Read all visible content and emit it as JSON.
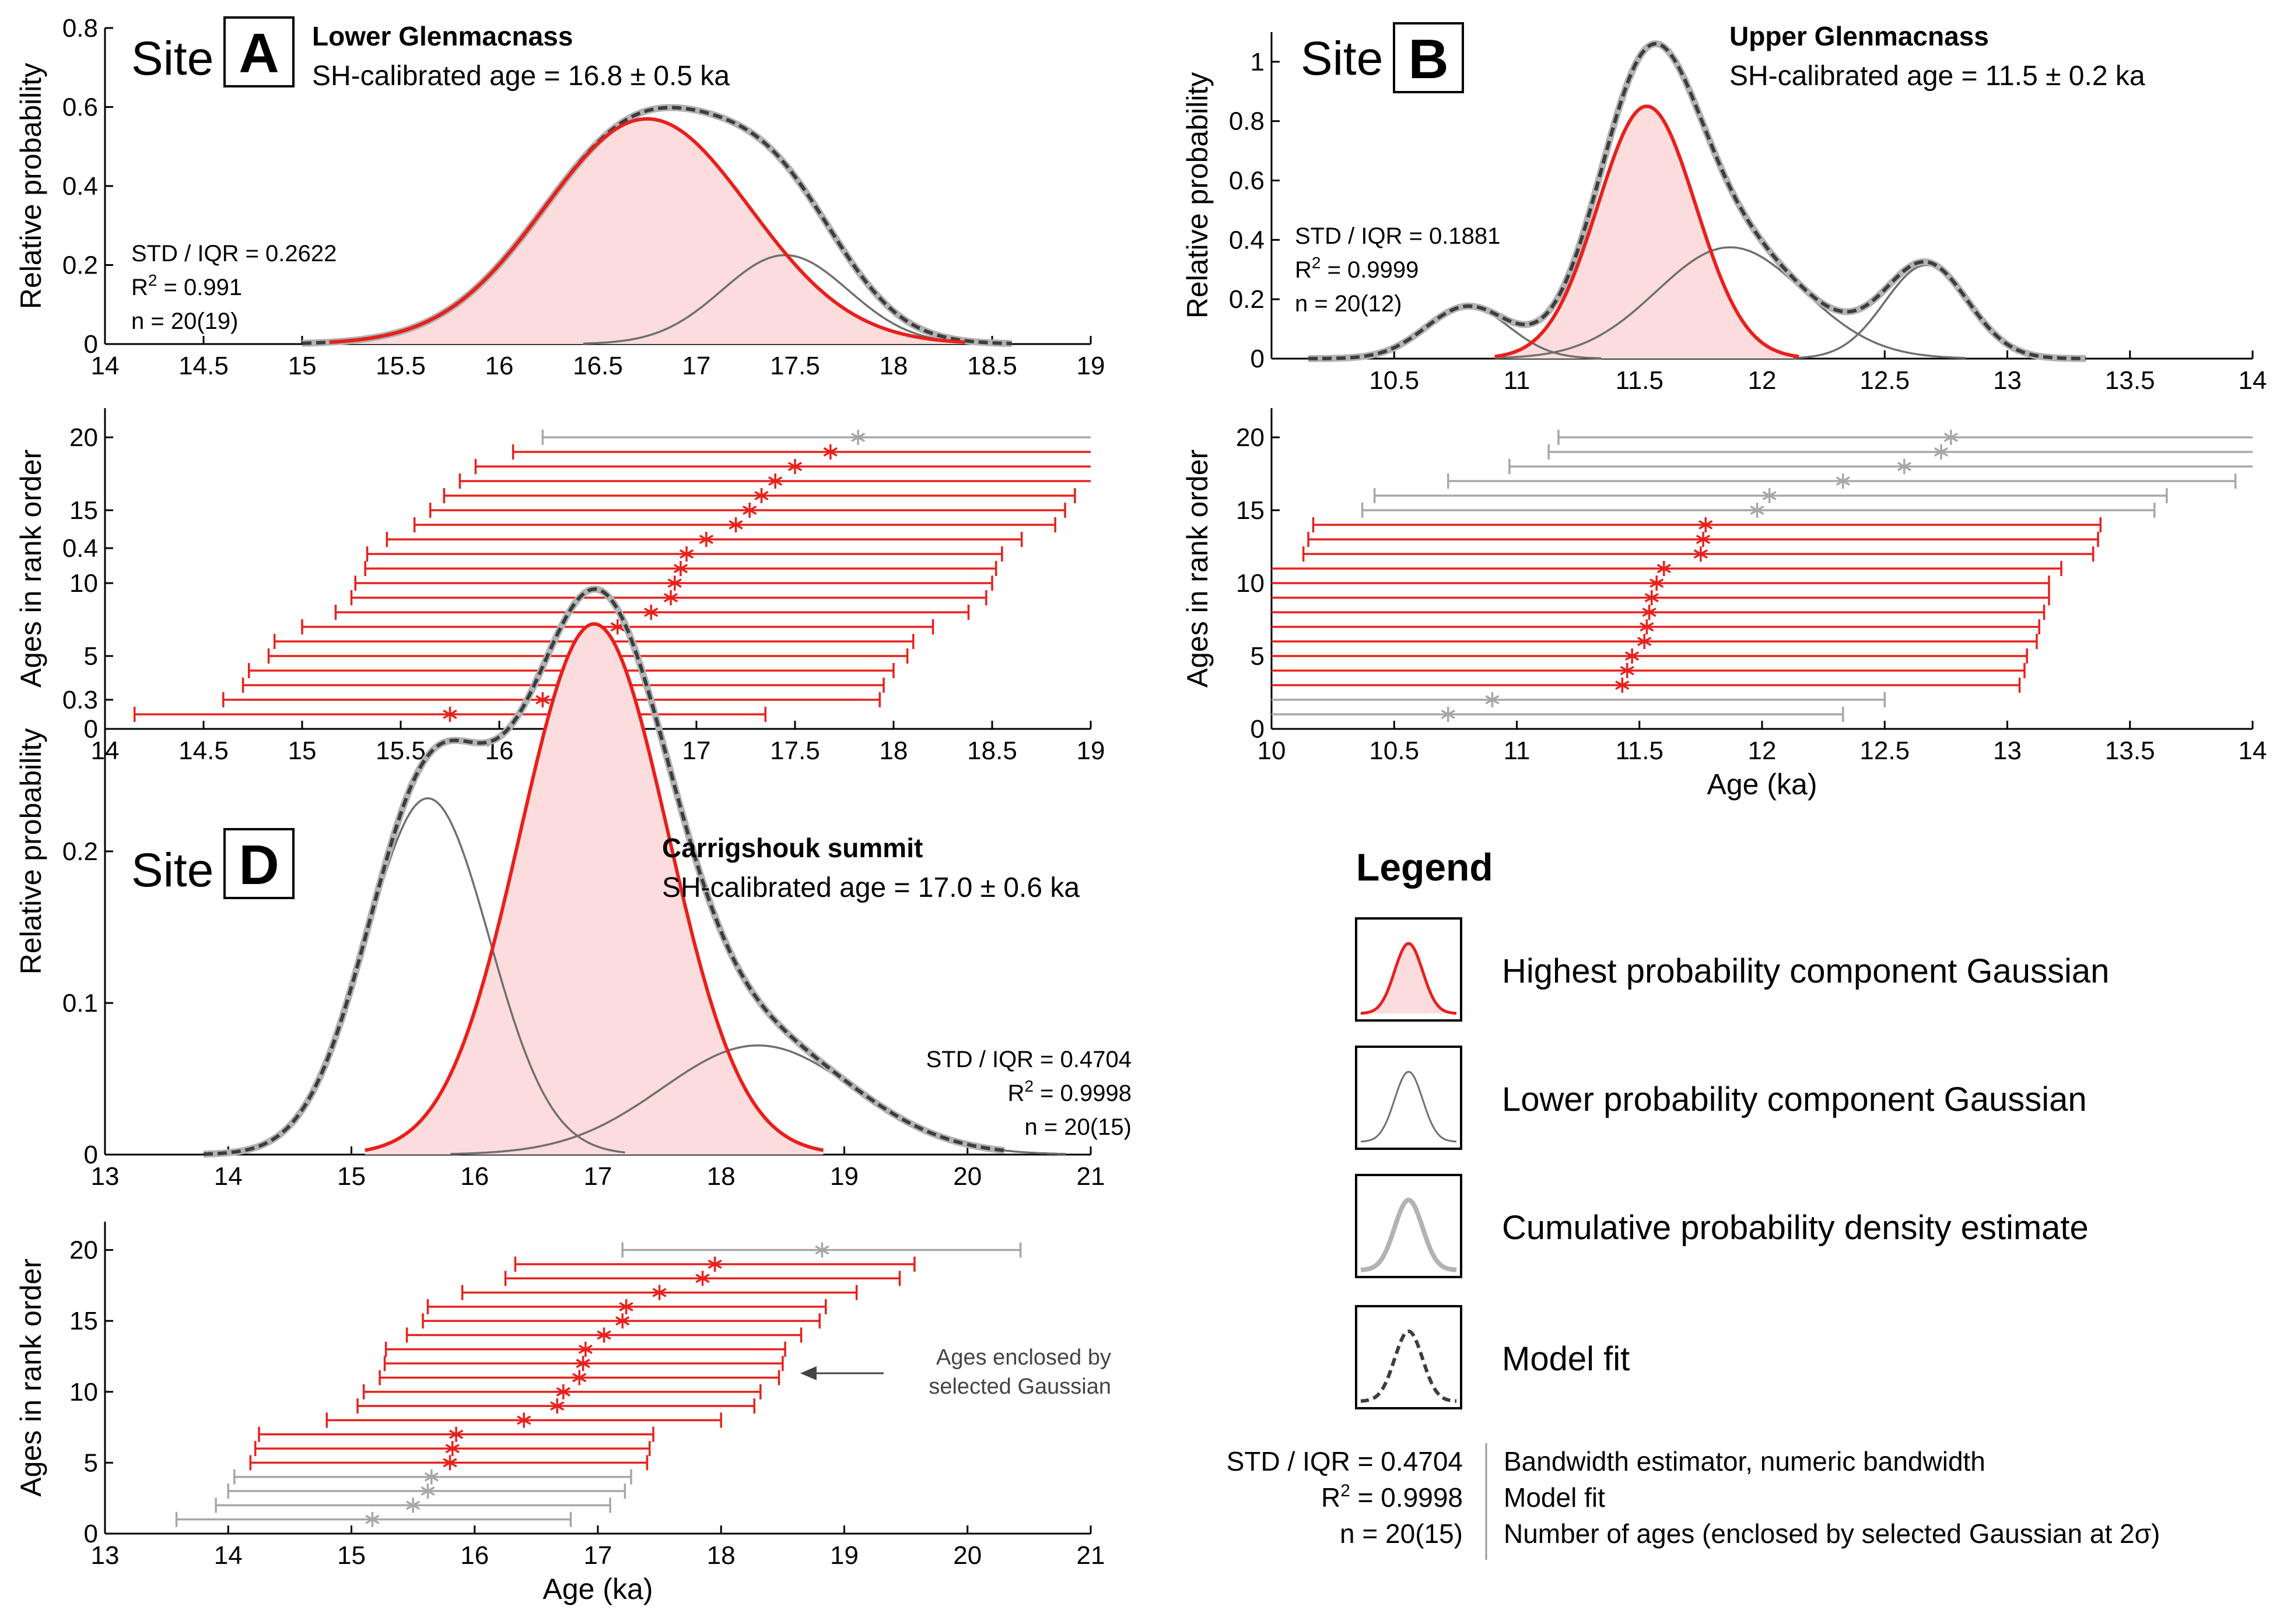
{
  "colors": {
    "red": "#e8201c",
    "redfill": "#fcdcdc",
    "gray": "#6f6f6f",
    "cum": "#b3b3b3",
    "model": "#3d3d3d",
    "grayrank": "#a7a7a7"
  },
  "common": {
    "xlabel": "Age (ka)",
    "ylabel_pdf": "Relative probability",
    "ylabel_rank": "Ages in rank order"
  },
  "panels": [
    {
      "id": "A",
      "site_word": "Site",
      "letter": "A",
      "name": "Lower Glenmacnass",
      "age_text": "SH-calibrated age = 16.8 ± 0.5 ka",
      "stats": [
        "STD / IQR = 0.2622",
        "R² = 0.991",
        "n = 20(19)"
      ]
    },
    {
      "id": "B",
      "site_word": "Site",
      "letter": "B",
      "name": "Upper Glenmacnass",
      "age_text": "SH-calibrated age = 11.5 ± 0.2 ka",
      "stats": [
        "STD / IQR = 0.1881",
        "R² = 0.9999",
        "n = 20(12)"
      ]
    },
    {
      "id": "D",
      "site_word": "Site",
      "letter": "D",
      "name": "Carrigshouk summit",
      "age_text": "SH-calibrated age = 17.0 ± 0.6 ka",
      "stats": [
        "STD / IQR = 0.4704",
        "R² = 0.9998",
        "n = 20(15)"
      ],
      "annotation": [
        "Ages enclosed by",
        "selected Gaussian"
      ]
    }
  ],
  "legend": {
    "title": "Legend",
    "items": [
      "Highest probability component Gaussian",
      "Lower probability component Gaussian",
      "Cumulative probability density estimate",
      "Model fit"
    ],
    "notes": [
      {
        "key": "STD / IQR = 0.4704",
        "text": "Bandwidth estimator, numeric bandwidth"
      },
      {
        "key": "R² = 0.9998",
        "text": "Model fit"
      },
      {
        "key": "n = 20(15)",
        "text": "Number of ages (enclosed by selected Gaussian at 2σ)"
      }
    ]
  },
  "chart_data": [
    {
      "panel": "A",
      "type": "line",
      "title": "Lower Glenmacnass",
      "xlabel": "",
      "ylabel": "Relative probability",
      "xlim": [
        14,
        19
      ],
      "ylim": [
        0,
        0.8
      ],
      "xticks": [
        "14",
        "14.5",
        "15",
        "15.5",
        "16",
        "16.5",
        "17",
        "17.5",
        "18",
        "18.5",
        "19"
      ],
      "yticks": [
        "0",
        "0.2",
        "0.4",
        "0.6",
        "0.8"
      ],
      "components": [
        {
          "role": "highest",
          "mu": 16.75,
          "sigma": 0.52,
          "amp": 0.57
        },
        {
          "role": "lower",
          "mu": 17.45,
          "sigma": 0.32,
          "amp": 0.225
        }
      ],
      "cumulative_range": [
        15.0,
        18.6
      ],
      "model_range": [
        15.0,
        18.6
      ]
    },
    {
      "panel": "A",
      "type": "scatter",
      "xlabel": "Age (ka)",
      "ylabel": "Ages in rank order",
      "xlim": [
        14,
        19
      ],
      "ylim": [
        0,
        22
      ],
      "xticks": [
        "14",
        "14.5",
        "15",
        "15.5",
        "16",
        "16.5",
        "17",
        "17.5",
        "18",
        "18.5",
        "19"
      ],
      "yticks": [
        "0",
        "5",
        "10",
        "15",
        "20"
      ],
      "points": [
        {
          "age": 15.75,
          "lo": 14.15,
          "hi": 17.35,
          "sel": true
        },
        {
          "age": 16.22,
          "lo": 14.6,
          "hi": 17.93,
          "sel": true
        },
        {
          "age": 16.33,
          "lo": 14.7,
          "hi": 17.95,
          "sel": true
        },
        {
          "age": 16.37,
          "lo": 14.73,
          "hi": 18.0,
          "sel": true
        },
        {
          "age": 16.45,
          "lo": 14.83,
          "hi": 18.07,
          "sel": true
        },
        {
          "age": 16.48,
          "lo": 14.86,
          "hi": 18.1,
          "sel": true
        },
        {
          "age": 16.6,
          "lo": 15.0,
          "hi": 18.2,
          "sel": true
        },
        {
          "age": 16.77,
          "lo": 15.17,
          "hi": 18.38,
          "sel": true
        },
        {
          "age": 16.87,
          "lo": 15.25,
          "hi": 18.47,
          "sel": true
        },
        {
          "age": 16.89,
          "lo": 15.27,
          "hi": 18.5,
          "sel": true
        },
        {
          "age": 16.92,
          "lo": 15.32,
          "hi": 18.52,
          "sel": true
        },
        {
          "age": 16.95,
          "lo": 15.33,
          "hi": 18.55,
          "sel": true
        },
        {
          "age": 17.05,
          "lo": 15.43,
          "hi": 18.65,
          "sel": true
        },
        {
          "age": 17.2,
          "lo": 15.57,
          "hi": 18.82,
          "sel": true
        },
        {
          "age": 17.27,
          "lo": 15.65,
          "hi": 18.87,
          "sel": true
        },
        {
          "age": 17.33,
          "lo": 15.72,
          "hi": 18.92,
          "sel": true
        },
        {
          "age": 17.4,
          "lo": 15.8,
          "hi": 19.0,
          "sel": true
        },
        {
          "age": 17.5,
          "lo": 15.88,
          "hi": 19.0,
          "sel": true
        },
        {
          "age": 17.68,
          "lo": 16.07,
          "hi": 19.0,
          "sel": true
        },
        {
          "age": 17.82,
          "lo": 16.22,
          "hi": 19.0,
          "sel": false
        }
      ]
    },
    {
      "panel": "B",
      "type": "line",
      "title": "Upper Glenmacnass",
      "xlabel": "",
      "ylabel": "Relative probability",
      "xlim": [
        10,
        14
      ],
      "ylim": [
        0,
        1.1
      ],
      "xticks": [
        "10.5",
        "11",
        "11.5",
        "12",
        "12.5",
        "13",
        "13.5",
        "14"
      ],
      "xtick_values": [
        10.5,
        11,
        11.5,
        12,
        12.5,
        13,
        13.5,
        14
      ],
      "yticks": [
        "0",
        "0.2",
        "0.4",
        "0.6",
        "0.8",
        "1"
      ],
      "components": [
        {
          "role": "highest",
          "mu": 11.53,
          "sigma": 0.2,
          "amp": 0.85
        },
        {
          "role": "lower",
          "mu": 10.8,
          "sigma": 0.17,
          "amp": 0.175
        },
        {
          "role": "lower",
          "mu": 11.87,
          "sigma": 0.3,
          "amp": 0.375
        },
        {
          "role": "lower",
          "mu": 12.67,
          "sigma": 0.17,
          "amp": 0.315
        }
      ],
      "cumulative_range": [
        10.15,
        13.32
      ],
      "model_range": [
        10.15,
        13.32
      ]
    },
    {
      "panel": "B",
      "type": "scatter",
      "xlabel": "Age (ka)",
      "ylabel": "Ages in rank order",
      "xlim": [
        10,
        14
      ],
      "ylim": [
        0,
        22
      ],
      "xticks": [
        "10",
        "10.5",
        "11",
        "11.5",
        "12",
        "12.5",
        "13",
        "13.5",
        "14"
      ],
      "yticks": [
        "0",
        "5",
        "10",
        "15",
        "20"
      ],
      "points": [
        {
          "age": 10.72,
          "lo": 10.0,
          "hi": 12.33,
          "sel": false
        },
        {
          "age": 10.9,
          "lo": 10.0,
          "hi": 12.5,
          "sel": false
        },
        {
          "age": 11.43,
          "lo": 10.0,
          "hi": 13.05,
          "sel": true
        },
        {
          "age": 11.45,
          "lo": 10.0,
          "hi": 13.07,
          "sel": true
        },
        {
          "age": 11.47,
          "lo": 10.0,
          "hi": 13.08,
          "sel": true
        },
        {
          "age": 11.52,
          "lo": 10.0,
          "hi": 13.12,
          "sel": true
        },
        {
          "age": 11.53,
          "lo": 10.0,
          "hi": 13.13,
          "sel": true
        },
        {
          "age": 11.54,
          "lo": 10.0,
          "hi": 13.15,
          "sel": true
        },
        {
          "age": 11.55,
          "lo": 10.0,
          "hi": 13.17,
          "sel": true
        },
        {
          "age": 11.57,
          "lo": 10.0,
          "hi": 13.17,
          "sel": true
        },
        {
          "age": 11.6,
          "lo": 10.0,
          "hi": 13.22,
          "sel": true
        },
        {
          "age": 11.75,
          "lo": 10.13,
          "hi": 13.35,
          "sel": true
        },
        {
          "age": 11.76,
          "lo": 10.15,
          "hi": 13.37,
          "sel": true
        },
        {
          "age": 11.77,
          "lo": 10.17,
          "hi": 13.38,
          "sel": true
        },
        {
          "age": 11.98,
          "lo": 10.37,
          "hi": 13.6,
          "sel": false
        },
        {
          "age": 12.03,
          "lo": 10.42,
          "hi": 13.65,
          "sel": false
        },
        {
          "age": 12.33,
          "lo": 10.72,
          "hi": 13.93,
          "sel": false
        },
        {
          "age": 12.58,
          "lo": 10.97,
          "hi": 14.0,
          "sel": false
        },
        {
          "age": 12.73,
          "lo": 11.13,
          "hi": 14.0,
          "sel": false
        },
        {
          "age": 12.77,
          "lo": 11.17,
          "hi": 14.0,
          "sel": false
        }
      ]
    },
    {
      "panel": "D",
      "type": "line",
      "title": "Carrigshouk summit",
      "xlabel": "",
      "ylabel": "Relative probability",
      "xlim": [
        13,
        21
      ],
      "ylim": [
        0,
        0.4
      ],
      "xticks": [
        "13",
        "14",
        "15",
        "16",
        "17",
        "18",
        "19",
        "20",
        "21"
      ],
      "yticks": [
        "0",
        "0.1",
        "0.2",
        "0.3",
        "0.4"
      ],
      "components": [
        {
          "role": "highest",
          "mu": 16.97,
          "sigma": 0.6,
          "amp": 0.35
        },
        {
          "role": "lower",
          "mu": 15.62,
          "sigma": 0.5,
          "amp": 0.235
        },
        {
          "role": "lower",
          "mu": 18.3,
          "sigma": 0.78,
          "amp": 0.072
        }
      ],
      "cumulative_range": [
        13.8,
        20.3
      ],
      "model_range": [
        13.8,
        20.3
      ]
    },
    {
      "panel": "D",
      "type": "scatter",
      "xlabel": "Age (ka)",
      "ylabel": "Ages in rank order",
      "xlim": [
        13,
        21
      ],
      "ylim": [
        0,
        22
      ],
      "xticks": [
        "13",
        "14",
        "15",
        "16",
        "17",
        "18",
        "19",
        "20",
        "21"
      ],
      "yticks": [
        "0",
        "5",
        "10",
        "15",
        "20"
      ],
      "points": [
        {
          "age": 15.17,
          "lo": 13.58,
          "hi": 16.78,
          "sel": false
        },
        {
          "age": 15.5,
          "lo": 13.9,
          "hi": 17.1,
          "sel": false
        },
        {
          "age": 15.62,
          "lo": 14.0,
          "hi": 17.22,
          "sel": false
        },
        {
          "age": 15.65,
          "lo": 14.05,
          "hi": 17.27,
          "sel": false
        },
        {
          "age": 15.8,
          "lo": 14.18,
          "hi": 17.4,
          "sel": true
        },
        {
          "age": 15.82,
          "lo": 14.22,
          "hi": 17.42,
          "sel": true
        },
        {
          "age": 15.85,
          "lo": 14.25,
          "hi": 17.45,
          "sel": true
        },
        {
          "age": 16.4,
          "lo": 14.8,
          "hi": 18.0,
          "sel": true
        },
        {
          "age": 16.67,
          "lo": 15.05,
          "hi": 18.27,
          "sel": true
        },
        {
          "age": 16.72,
          "lo": 15.1,
          "hi": 18.32,
          "sel": true
        },
        {
          "age": 16.85,
          "lo": 15.23,
          "hi": 18.47,
          "sel": true
        },
        {
          "age": 16.88,
          "lo": 15.27,
          "hi": 18.5,
          "sel": true
        },
        {
          "age": 16.9,
          "lo": 15.28,
          "hi": 18.52,
          "sel": true
        },
        {
          "age": 17.05,
          "lo": 15.45,
          "hi": 18.65,
          "sel": true
        },
        {
          "age": 17.2,
          "lo": 15.58,
          "hi": 18.8,
          "sel": true
        },
        {
          "age": 17.23,
          "lo": 15.62,
          "hi": 18.85,
          "sel": true
        },
        {
          "age": 17.5,
          "lo": 15.9,
          "hi": 19.1,
          "sel": true
        },
        {
          "age": 17.85,
          "lo": 16.25,
          "hi": 19.45,
          "sel": true
        },
        {
          "age": 17.95,
          "lo": 16.33,
          "hi": 19.57,
          "sel": true
        },
        {
          "age": 18.82,
          "lo": 17.2,
          "hi": 20.43,
          "sel": false
        }
      ]
    }
  ]
}
